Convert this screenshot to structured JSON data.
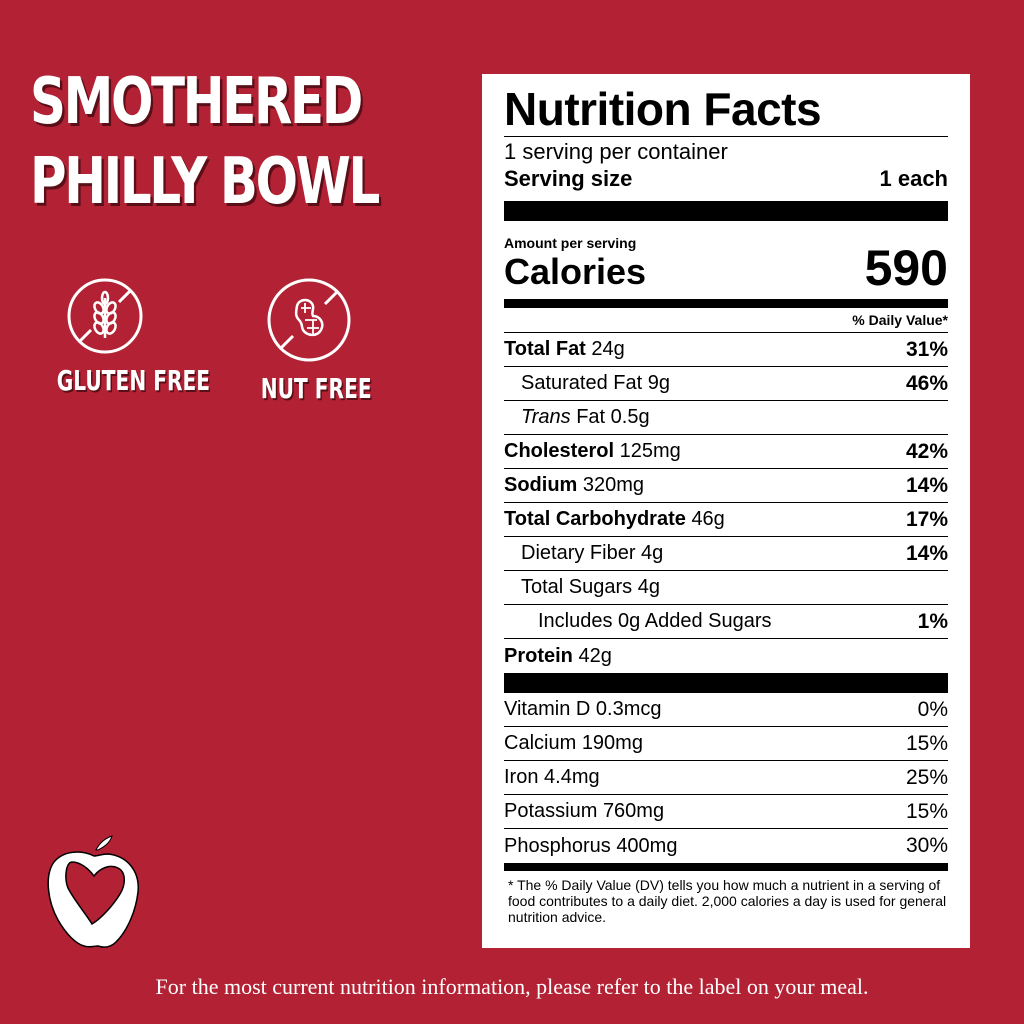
{
  "product": {
    "title_line1": "SMOTHERED",
    "title_line2": "PHILLY BOWL"
  },
  "badges": [
    {
      "label": "GLUTEN FREE",
      "icon": "no-wheat-icon"
    },
    {
      "label": "NUT FREE",
      "icon": "no-peanut-icon"
    }
  ],
  "colors": {
    "background": "#b22234",
    "label": "#ffffff"
  },
  "label": {
    "title": "Nutrition Facts",
    "servings": "1 serving per container",
    "serving_size_label": "Serving size",
    "serving_size_value": "1 each",
    "amount_per_serving": "Amount per serving",
    "calories_label": "Calories",
    "calories": "590",
    "dv_header": "% Daily Value*",
    "nutrients": [
      {
        "name": "Total Fat",
        "amount": "24g",
        "dv": "31%"
      },
      {
        "name": "Saturated Fat",
        "amount": "9g",
        "dv": "46%"
      },
      {
        "name": "Trans",
        "name2": "Fat",
        "amount": "0.5g",
        "dv": ""
      },
      {
        "name": "Cholesterol",
        "amount": "125mg",
        "dv": "42%"
      },
      {
        "name": "Sodium",
        "amount": "320mg",
        "dv": "14%"
      },
      {
        "name": "Total Carbohydrate",
        "amount": "46g",
        "dv": "17%"
      },
      {
        "name": "Dietary Fiber",
        "amount": "4g",
        "dv": "14%"
      },
      {
        "name": "Total Sugars",
        "amount": "4g",
        "dv": ""
      },
      {
        "name": "Includes 0g Added Sugars",
        "amount": "",
        "dv": "1%"
      },
      {
        "name": "Protein",
        "amount": "42g",
        "dv": ""
      }
    ],
    "vitamins": [
      {
        "name": "Vitamin D",
        "amount": "0.3mcg",
        "dv": "0%"
      },
      {
        "name": "Calcium",
        "amount": "190mg",
        "dv": "15%"
      },
      {
        "name": "Iron",
        "amount": "4.4mg",
        "dv": "25%"
      },
      {
        "name": "Potassium",
        "amount": "760mg",
        "dv": "15%"
      },
      {
        "name": "Phosphorus",
        "amount": "400mg",
        "dv": "30%"
      }
    ],
    "footnote": "* The % Daily Value (DV) tells you how much a nutrient in a serving of food contributes to a daily diet. 2,000 calories a day is used for general nutrition advice."
  },
  "footer": "For the most current nutrition information, please refer to the label on your meal."
}
